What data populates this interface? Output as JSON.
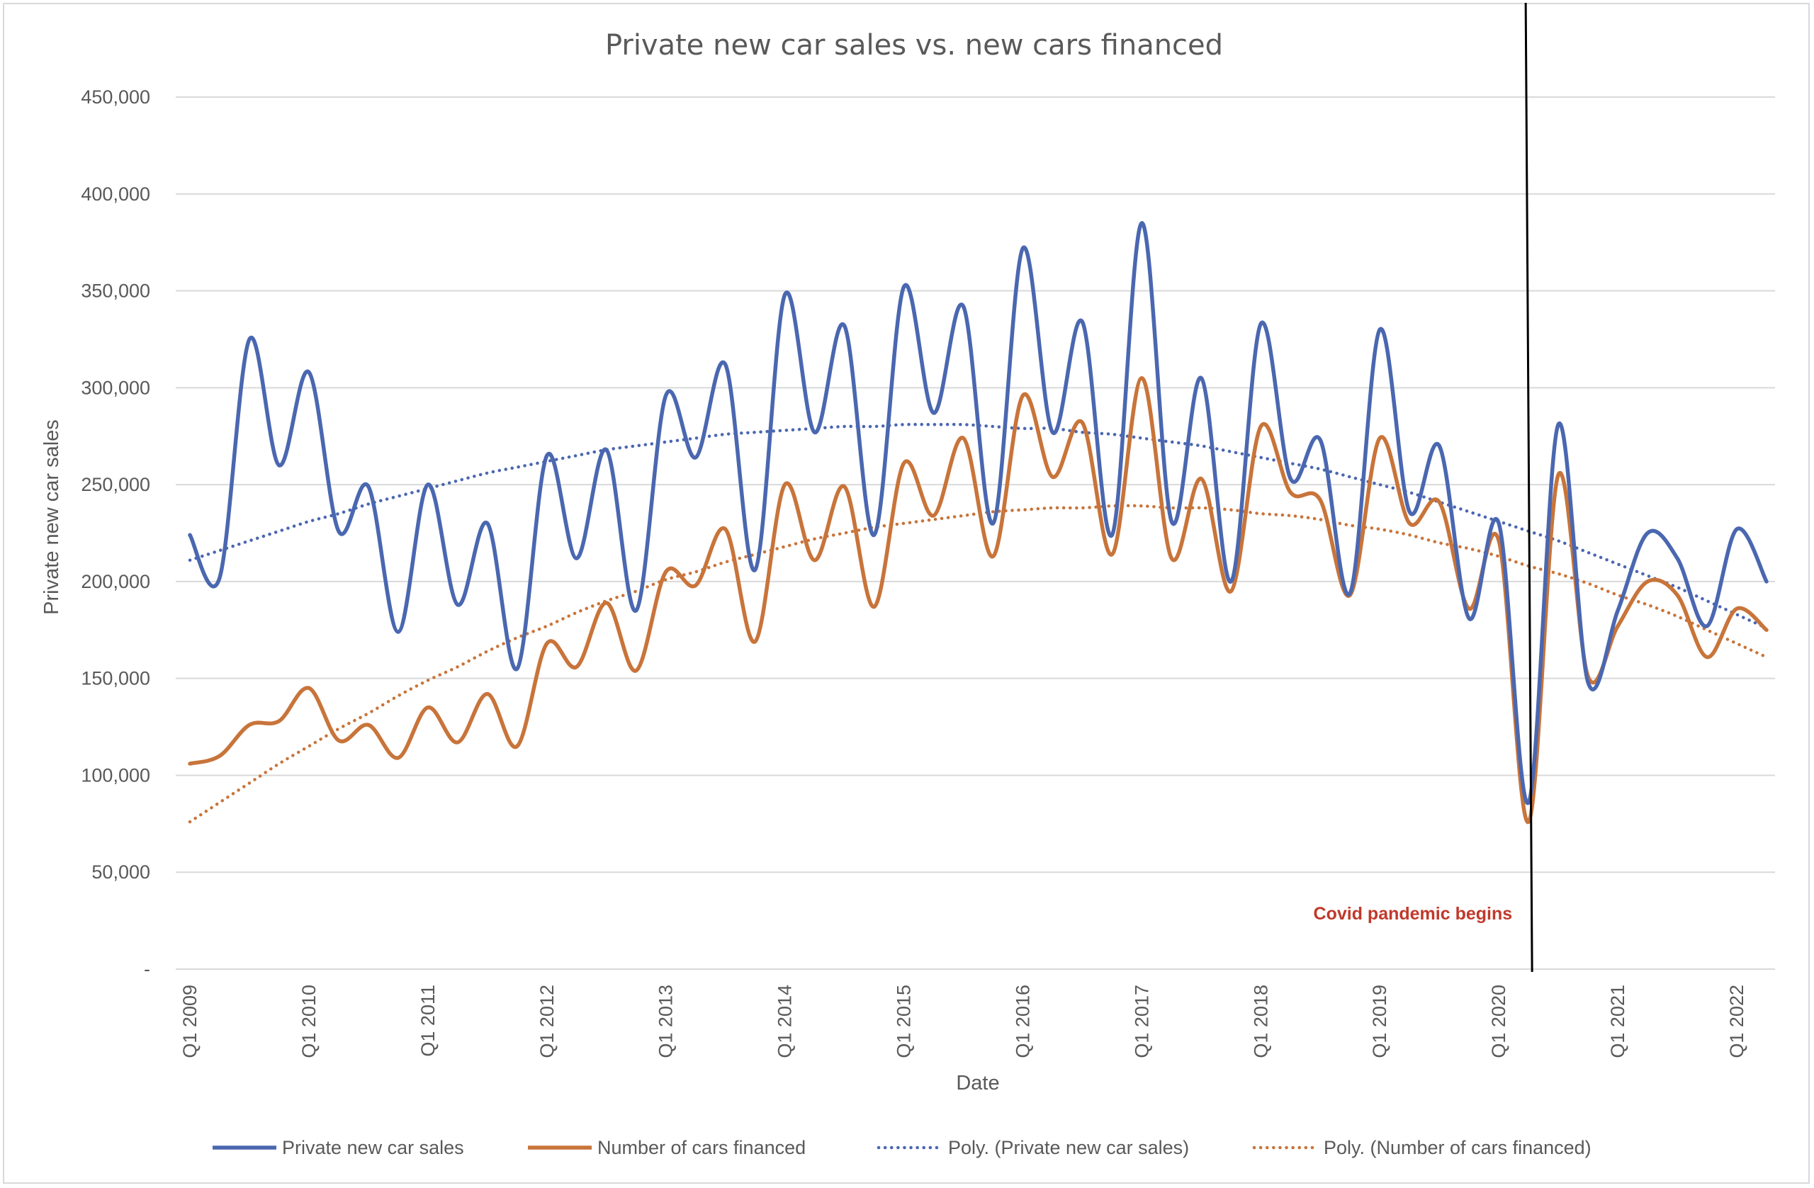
{
  "chart_data": {
    "type": "line",
    "title": "Private new car sales vs. new cars financed",
    "xlabel": "Date",
    "ylabel": "Private new car sales",
    "ylim": [
      0,
      450000
    ],
    "yticks": [
      0,
      50000,
      100000,
      150000,
      200000,
      250000,
      300000,
      350000,
      400000,
      450000
    ],
    "ytick_labels": [
      "-",
      "50,000",
      "100,000",
      "150,000",
      "200,000",
      "250,000",
      "300,000",
      "350,000",
      "400,000",
      "450,000"
    ],
    "xtick_labels": [
      "Q1 2009",
      "Q1 2010",
      "Q1 2011",
      "Q1 2012",
      "Q1 2013",
      "Q1 2014",
      "Q1 2015",
      "Q1 2016",
      "Q1 2017",
      "Q1 2018",
      "Q1 2019",
      "Q1 2020",
      "Q1 2021",
      "Q1 2022"
    ],
    "x": [
      "Q1 2009",
      "Q2 2009",
      "Q3 2009",
      "Q4 2009",
      "Q1 2010",
      "Q2 2010",
      "Q3 2010",
      "Q4 2010",
      "Q1 2011",
      "Q2 2011",
      "Q3 2011",
      "Q4 2011",
      "Q1 2012",
      "Q2 2012",
      "Q3 2012",
      "Q4 2012",
      "Q1 2013",
      "Q2 2013",
      "Q3 2013",
      "Q4 2013",
      "Q1 2014",
      "Q2 2014",
      "Q3 2014",
      "Q4 2014",
      "Q1 2015",
      "Q2 2015",
      "Q3 2015",
      "Q4 2015",
      "Q1 2016",
      "Q2 2016",
      "Q3 2016",
      "Q4 2016",
      "Q1 2017",
      "Q2 2017",
      "Q3 2017",
      "Q4 2017",
      "Q1 2018",
      "Q2 2018",
      "Q3 2018",
      "Q4 2018",
      "Q1 2019",
      "Q2 2019",
      "Q3 2019",
      "Q4 2019",
      "Q1 2020",
      "Q2 2020",
      "Q3 2020",
      "Q4 2020",
      "Q1 2021",
      "Q2 2021",
      "Q3 2021",
      "Q4 2021",
      "Q1 2022",
      "Q2 2022"
    ],
    "series": [
      {
        "name": "Private new car sales",
        "color": "#4a67b0",
        "style": "solid",
        "values": [
          224000,
          202000,
          325000,
          260000,
          308000,
          226000,
          249000,
          174000,
          250000,
          188000,
          230000,
          155000,
          265000,
          212000,
          268000,
          185000,
          296000,
          264000,
          312000,
          206000,
          348000,
          277000,
          332000,
          224000,
          352000,
          287000,
          342000,
          230000,
          372000,
          277000,
          334000,
          224000,
          385000,
          231000,
          305000,
          200000,
          333000,
          253000,
          273000,
          194000,
          330000,
          236000,
          270000,
          181000,
          230000,
          86000,
          281000,
          148000,
          185000,
          225000,
          212000,
          177000,
          227000,
          200000
        ]
      },
      {
        "name": "Number of cars financed",
        "color": "#c8743a",
        "style": "solid",
        "values": [
          106000,
          110000,
          126000,
          128000,
          145000,
          118000,
          126000,
          109000,
          135000,
          117000,
          142000,
          115000,
          168000,
          156000,
          189000,
          154000,
          205000,
          198000,
          227000,
          169000,
          250000,
          211000,
          249000,
          187000,
          261000,
          234000,
          274000,
          213000,
          296000,
          254000,
          282000,
          214000,
          305000,
          212000,
          253000,
          195000,
          280000,
          246000,
          242000,
          193000,
          274000,
          230000,
          241000,
          186000,
          221000,
          76000,
          255000,
          151000,
          177000,
          200000,
          193000,
          161000,
          186000,
          175000
        ]
      },
      {
        "name": "Poly. (Private new car sales)",
        "color": "#4a67b0",
        "style": "dotted",
        "values": [
          211000,
          216000,
          221000,
          226000,
          231000,
          235000,
          240000,
          244000,
          248000,
          252000,
          256000,
          259000,
          262000,
          265000,
          268000,
          270000,
          272000,
          274000,
          276000,
          277000,
          278000,
          279000,
          280000,
          280000,
          281000,
          281000,
          281000,
          280000,
          279000,
          279000,
          277000,
          276000,
          274000,
          272000,
          270000,
          267000,
          264000,
          261000,
          258000,
          254000,
          250000,
          246000,
          241000,
          236000,
          231000,
          226000,
          221000,
          215000,
          209000,
          203000,
          197000,
          190000,
          183000,
          176000
        ]
      },
      {
        "name": "Poly. (Number of cars financed)",
        "color": "#c8743a",
        "style": "dotted",
        "values": [
          76000,
          86000,
          96000,
          106000,
          115000,
          124000,
          132000,
          141000,
          149000,
          156000,
          164000,
          171000,
          177000,
          184000,
          190000,
          195000,
          201000,
          205000,
          210000,
          214000,
          218000,
          222000,
          225000,
          228000,
          230000,
          232000,
          234000,
          236000,
          237000,
          238000,
          238000,
          239000,
          239000,
          238000,
          238000,
          237000,
          235000,
          234000,
          232000,
          229000,
          227000,
          224000,
          220000,
          217000,
          213000,
          208000,
          204000,
          199000,
          193000,
          188000,
          182000,
          175000,
          168000,
          161000
        ]
      }
    ],
    "annotations": [
      {
        "text": "Covid pandemic begins",
        "x": "Q2 2020",
        "line_color": "#000000",
        "text_color": "#c0392b"
      }
    ],
    "grid": "horizontal",
    "legend": "bottom"
  }
}
